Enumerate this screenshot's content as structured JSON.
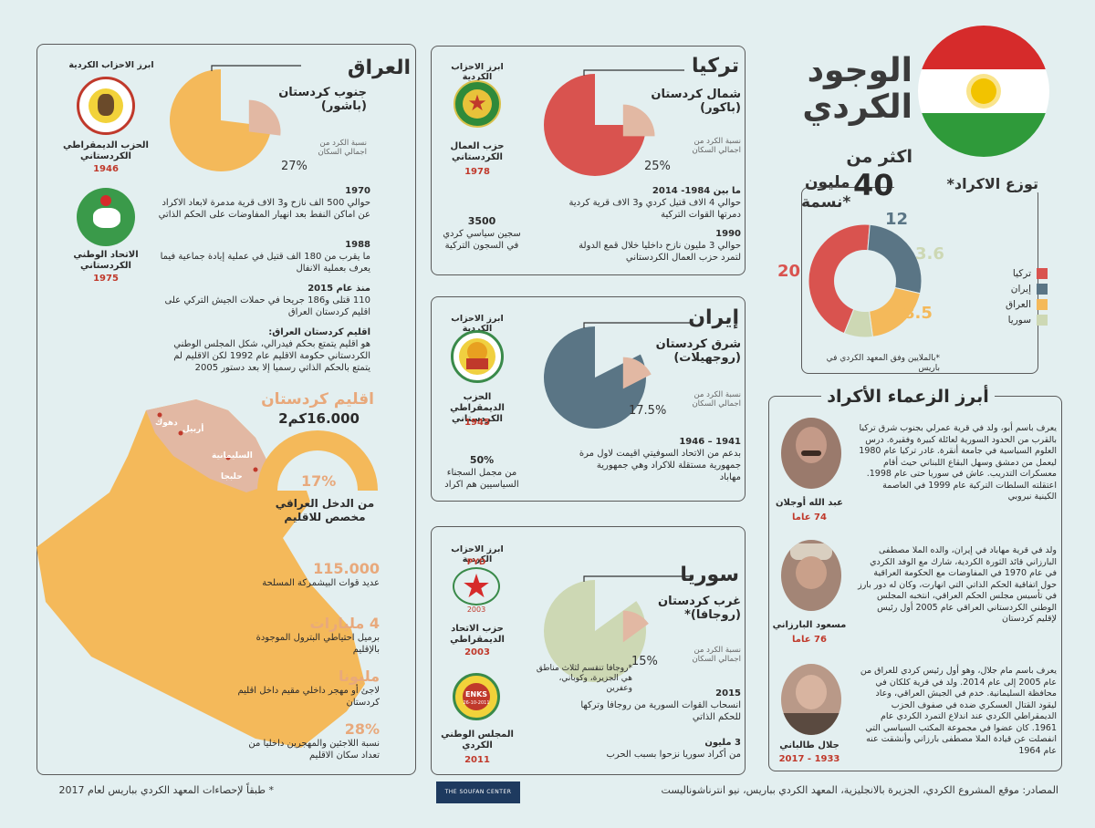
{
  "header": {
    "title_line1": "الوجود",
    "title_line2": "الكردي",
    "flag_colors": {
      "red": "#d62b2b",
      "white": "#ffffff",
      "green": "#2f9a3a",
      "sun": "#f2c300"
    }
  },
  "distribution": {
    "title": "توزع الاكراد*",
    "total_prefix": "اكثر من",
    "total_number": "40",
    "total_unit": "مليون",
    "total_suffix": "نسمة*",
    "footnote": "*بالملايين وفق المعهد الكردي في باريس",
    "chart_data": {
      "type": "pie",
      "categories": [
        "تركيا",
        "إيران",
        "العراق",
        "سوريا"
      ],
      "values": [
        20,
        12,
        8.5,
        3.6
      ],
      "labels": [
        "20",
        "12",
        "8.5",
        "3.6"
      ],
      "colors": [
        "#d9534f",
        "#5a7585",
        "#f4b95a",
        "#cdd8b4"
      ]
    }
  },
  "turkey": {
    "name": "تركيا",
    "region": "شمال كردستان",
    "region_sub": "(باكور)",
    "pct": "25%",
    "pct_value": 25,
    "pct_note": "نسبة الكرد من اجمالي السكان",
    "parties_title": "ابرز الاحزاب الكردية",
    "party_name": "حزب العمال الكردستاني",
    "party_year": "1978",
    "stat_num": "3500",
    "stat_text": "سجين سياسي كردي في السجون التركية",
    "events": [
      {
        "title": "ما بين 1984- 2014",
        "text": "حوالي 4 الاف قتيل كردي و3 الاف قرية كردية دمرتها القوات التركية"
      },
      {
        "title": "1990",
        "text": "حوالي 3 مليون نازح داخليا خلال قمع الدولة لتمرد حزب العمال الكردستاني"
      }
    ]
  },
  "iran": {
    "name": "إيران",
    "region": "شرق كردستان",
    "region_sub": "(روجهيلات)",
    "pct": "17.5%",
    "pct_value": 17.5,
    "pct_note": "نسبة الكرد من اجمالي السكان",
    "parties_title": "ابرز الاحزاب الكردية",
    "party_name": "الحزب الديمقراطي الكردستاني",
    "party_year": "1945",
    "stat_num": "50%",
    "stat_text": "من مجمل السجناء السياسيين هم اكراد",
    "events": [
      {
        "title": "1941 – 1946",
        "text": "بدعم من الاتحاد السوفيتي اقيمت لاول مرة جمهورية مستقلة للاكراد وهي جمهورية مهاباد"
      }
    ]
  },
  "syria": {
    "name": "سوريا",
    "region": "غرب كردستان",
    "region_sub": "(روجافا)*",
    "pct": "15%",
    "pct_value": 15,
    "pct_note": "نسبة الكرد من اجمالي السكان",
    "footnote": "*روجافا تنقسم لثلاث مناطق هي الجزيرة، وكوباني، وعفرين",
    "parties_title": "ابرز الاحزاب الكردية",
    "parties": [
      {
        "name": "حزب الاتحاد الديمقراطي",
        "year": "2003",
        "logo_text": "PYD",
        "logo_year": "2003"
      },
      {
        "name": "المجلس الوطني الكردي",
        "year": "2011",
        "logo_text": "ENKS",
        "logo_year": "26-10-2011"
      }
    ],
    "events": [
      {
        "title": "2015",
        "text": "انسحاب القوات السورية من روجافا وتركها للحكم الذاتي"
      },
      {
        "title": "3 مليون",
        "text": "من أكراد سوريا نزحوا بسبب الحرب"
      }
    ]
  },
  "iraq": {
    "name": "العراق",
    "region": "جنوب كردستان",
    "region_sub": "(باشور)",
    "pct": "27%",
    "pct_value": 27,
    "pct_note": "نسبة الكرد من اجمالي السكان",
    "parties_title": "ابرز الاحزاب الكردية",
    "parties": [
      {
        "name": "الحزب الديمقراطي الكردستاني",
        "year": "1946"
      },
      {
        "name": "الاتحاد الوطني الكردستاني",
        "year": "1975"
      }
    ],
    "events": [
      {
        "title": "1970",
        "text": "حوالي 500 الف نازح و3 الاف قرية مدمرة لابعاد الاكراد عن اماكن النفط بعد انهيار المفاوضات على الحكم الذاتي"
      },
      {
        "title": "1988",
        "text": "ما يقرب من 180 الف قتيل في عملية إبادة جماعية فيما يعرف بعملية الانفال"
      },
      {
        "title": "منذ عام 2015",
        "text": "110 قتلى و186 جريحا في حملات الجيش التركي على اقليم كردستان العراق"
      },
      {
        "title": "اقليم كردستان العراق:",
        "text": "هو اقليم يتمتع بحكم فيدرالي، شكل المجلس الوطني الكردستاني حكومة الاقليم عام 1992 لكن الاقليم لم يتمتع بالحكم الذاتي رسميا إلا بعد دستور 2005"
      }
    ],
    "region_title": "اقليم كردستان",
    "region_area": "16.000كم2",
    "budget_pct": "17%",
    "budget_value": 17,
    "budget_text": "من الدخل العراقي مخصص للاقليم",
    "cities": [
      "دهوك",
      "أربيل",
      "السليمانية",
      "حلبجا"
    ],
    "stats": [
      {
        "num": "115.000",
        "text": "عديد قوات البيشمركة المسلحة"
      },
      {
        "num": "4 مليارات",
        "text": "برميل احتياطي البترول الموجودة بالإقليم"
      },
      {
        "num": "مليونا",
        "text": "لاجئ أو مهجر داخلي مقيم داخل اقليم كردستان"
      },
      {
        "num": "28%",
        "text": "نسبة اللاجئين والمهجرين داخليا من تعداد سكان الاقليم"
      }
    ]
  },
  "leaders": {
    "title": "أبرز الزعماء الأكراد",
    "items": [
      {
        "name": "عبد الله أوجلان",
        "age": "74 عاما",
        "bio": "يعرف باسم أبو، ولد في قرية عمرلي بجنوب شرق تركيا بالقرب من الحدود السورية لعائلة كبيرة وفقيرة. درس العلوم السياسية في جامعة أنقرة. غادر تركيا عام 1980 ليعمل من دمشق وسهل البقاع اللبناني حيث أقام معسكرات التدريب. عاش في سوريا حتى عام 1998. اعتقلته السلطات التركية عام 1999 في العاصمة الكينية نيروبي"
      },
      {
        "name": "مسعود البارزاني",
        "age": "76 عاما",
        "bio": "ولد في قرية مهاباد في إيران، والده الملا مصطفى البارزاني قائد الثورة الكردية، شارك مع الوفد الكردي في عام 1970 في المفاوضات مع الحكومة العراقية حول اتفاقية الحكم الذاتي التي انهارت، وكان له دور بارز في تأسيس مجلس الحكم العراقي، انتخبه المجلس الوطني الكردستاني العراقي عام 2005 أول رئيس لإقليم كردستان"
      },
      {
        "name": "جلال طالباني",
        "age": "1933 - 2017",
        "bio": "يعرف باسم مام جلال، وهو أول رئيس كردي للعراق من عام 2005 إلى عام 2014. ولد في قرية كلكان في محافظة السليمانية. خدم في الجيش العراقي، وعاد ليقود القتال العسكري ضده في صفوف الحزب الديمقراطي الكردي عند اندلاع التمرد الكردي عام 1961. كان عضوا في مجموعة المكتب السياسي التي انفصلت عن قيادة الملا مصطفى بارزاني وأنشقت عنه عام 1964"
      }
    ]
  },
  "footer": {
    "sources": "المصادر: موقع المشروع الكردي، الجزيرة بالانجليزية، المعهد الكردي بباريس، نيو انترناشوناليست",
    "note": "* طبقاً لإحصاءات المعهد الكردي بباريس لعام 2017",
    "brand": "THE SOUFAN CENTER"
  }
}
